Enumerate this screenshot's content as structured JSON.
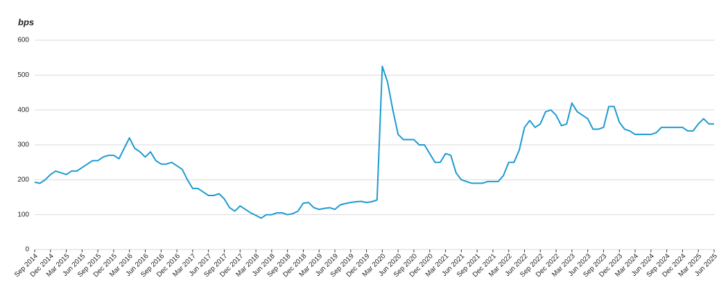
{
  "chart_data": {
    "type": "line",
    "ylabel": "bps",
    "x": [
      "2014-09",
      "2014-10",
      "2014-11",
      "2014-12",
      "2015-01",
      "2015-02",
      "2015-03",
      "2015-04",
      "2015-05",
      "2015-06",
      "2015-07",
      "2015-08",
      "2015-09",
      "2015-10",
      "2015-11",
      "2015-12",
      "2016-01",
      "2016-02",
      "2016-03",
      "2016-04",
      "2016-05",
      "2016-06",
      "2016-07",
      "2016-08",
      "2016-09",
      "2016-10",
      "2016-11",
      "2016-12",
      "2017-01",
      "2017-02",
      "2017-03",
      "2017-04",
      "2017-05",
      "2017-06",
      "2017-07",
      "2017-08",
      "2017-09",
      "2017-10",
      "2017-11",
      "2017-12",
      "2018-01",
      "2018-02",
      "2018-03",
      "2018-04",
      "2018-05",
      "2018-06",
      "2018-07",
      "2018-08",
      "2018-09",
      "2018-10",
      "2018-11",
      "2018-12",
      "2019-01",
      "2019-02",
      "2019-03",
      "2019-04",
      "2019-05",
      "2019-06",
      "2019-07",
      "2019-08",
      "2019-09",
      "2019-10",
      "2019-11",
      "2019-12",
      "2020-01",
      "2020-02",
      "2020-03",
      "2020-04",
      "2020-05",
      "2020-06",
      "2020-07",
      "2020-08",
      "2020-09",
      "2020-10",
      "2020-11",
      "2020-12",
      "2021-01",
      "2021-02",
      "2021-03",
      "2021-04",
      "2021-05",
      "2021-06",
      "2021-07",
      "2021-08",
      "2021-09",
      "2021-10",
      "2021-11",
      "2021-12",
      "2022-01",
      "2022-02",
      "2022-03",
      "2022-04",
      "2022-05",
      "2022-06",
      "2022-07",
      "2022-08",
      "2022-09",
      "2022-10",
      "2022-11",
      "2022-12",
      "2023-01",
      "2023-02",
      "2023-03",
      "2023-04",
      "2023-05",
      "2023-06",
      "2023-07",
      "2023-08",
      "2023-09",
      "2023-10",
      "2023-11",
      "2023-12",
      "2024-01",
      "2024-02",
      "2024-03",
      "2024-04",
      "2024-05",
      "2024-06",
      "2024-07",
      "2024-08",
      "2024-09",
      "2024-10",
      "2024-11",
      "2024-12",
      "2025-01",
      "2025-02",
      "2025-03",
      "2025-04",
      "2025-05",
      "2025-06"
    ],
    "series": [
      {
        "color": "#1a9ad0",
        "values": [
          193,
          190,
          200,
          215,
          225,
          220,
          215,
          225,
          225,
          235,
          245,
          255,
          255,
          265,
          270,
          270,
          260,
          290,
          320,
          290,
          280,
          265,
          280,
          255,
          245,
          245,
          250,
          240,
          230,
          200,
          175,
          175,
          165,
          155,
          155,
          160,
          145,
          120,
          110,
          125,
          115,
          105,
          98,
          90,
          100,
          100,
          105,
          105,
          100,
          103,
          110,
          133,
          135,
          120,
          115,
          118,
          120,
          115,
          128,
          132,
          135,
          137,
          138,
          135,
          137,
          142,
          525,
          480,
          400,
          330,
          315,
          315,
          315,
          300,
          300,
          275,
          250,
          250,
          275,
          270,
          220,
          200,
          195,
          190,
          190,
          190,
          195,
          195,
          195,
          212,
          250,
          250,
          285,
          350,
          370,
          350,
          360,
          395,
          400,
          385,
          355,
          360,
          420,
          395,
          385,
          375,
          345,
          345,
          350,
          410,
          410,
          365,
          345,
          340,
          330,
          330,
          330,
          330,
          335,
          350,
          350,
          350,
          350,
          350,
          340,
          340,
          360,
          375,
          360,
          360
        ]
      }
    ],
    "xticks": [
      {
        "value": "2014-09",
        "label": "Sep 2014"
      },
      {
        "value": "2014-12",
        "label": "Dec 2014"
      },
      {
        "value": "2015-03",
        "label": "Mar 2015"
      },
      {
        "value": "2015-06",
        "label": "Jun 2015"
      },
      {
        "value": "2015-09",
        "label": "Sep 2015"
      },
      {
        "value": "2015-12",
        "label": "Dec 2015"
      },
      {
        "value": "2016-03",
        "label": "Mar 2016"
      },
      {
        "value": "2016-06",
        "label": "Jun 2016"
      },
      {
        "value": "2016-09",
        "label": "Sep 2016"
      },
      {
        "value": "2016-12",
        "label": "Dec 2016"
      },
      {
        "value": "2017-03",
        "label": "Mar 2017"
      },
      {
        "value": "2017-06",
        "label": "Jun 2017"
      },
      {
        "value": "2017-09",
        "label": "Sep 2017"
      },
      {
        "value": "2017-12",
        "label": "Dec 2017"
      },
      {
        "value": "2018-03",
        "label": "Mar 2018"
      },
      {
        "value": "2018-06",
        "label": "Jun 2018"
      },
      {
        "value": "2018-09",
        "label": "Sep 2018"
      },
      {
        "value": "2018-12",
        "label": "Dec 2018"
      },
      {
        "value": "2019-03",
        "label": "Mar 2019"
      },
      {
        "value": "2019-06",
        "label": "Jun 2019"
      },
      {
        "value": "2019-09",
        "label": "Sep 2019"
      },
      {
        "value": "2019-12",
        "label": "Dec 2019"
      },
      {
        "value": "2020-03",
        "label": "Mar 2020"
      },
      {
        "value": "2020-06",
        "label": "Jun 2020"
      },
      {
        "value": "2020-09",
        "label": "Sep 2020"
      },
      {
        "value": "2020-12",
        "label": "Dec 2020"
      },
      {
        "value": "2021-03",
        "label": "Mar 2021"
      },
      {
        "value": "2021-06",
        "label": "Jun 2021"
      },
      {
        "value": "2021-09",
        "label": "Sep 2021"
      },
      {
        "value": "2021-12",
        "label": "Dec 2021"
      },
      {
        "value": "2022-03",
        "label": "Mar 2022"
      },
      {
        "value": "2022-06",
        "label": "Jun 2022"
      },
      {
        "value": "2022-09",
        "label": "Sep 2022"
      },
      {
        "value": "2022-12",
        "label": "Dec 2022"
      },
      {
        "value": "2023-03",
        "label": "Mar 2023"
      },
      {
        "value": "2023-06",
        "label": "Jun 2023"
      },
      {
        "value": "2023-09",
        "label": "Sep 2023"
      },
      {
        "value": "2023-12",
        "label": "Dec 2023"
      },
      {
        "value": "2024-03",
        "label": "Mar 2024"
      },
      {
        "value": "2024-06",
        "label": "Jun 2024"
      },
      {
        "value": "2024-09",
        "label": "Sep 2024"
      },
      {
        "value": "2024-12",
        "label": "Dec 2024"
      },
      {
        "value": "2025-03",
        "label": "Mar 2025"
      },
      {
        "value": "2025-06",
        "label": "Jun 2025"
      }
    ],
    "ylim": [
      0,
      600
    ],
    "yticks": [
      0,
      100,
      200,
      300,
      400,
      500,
      600
    ],
    "grid": true
  }
}
